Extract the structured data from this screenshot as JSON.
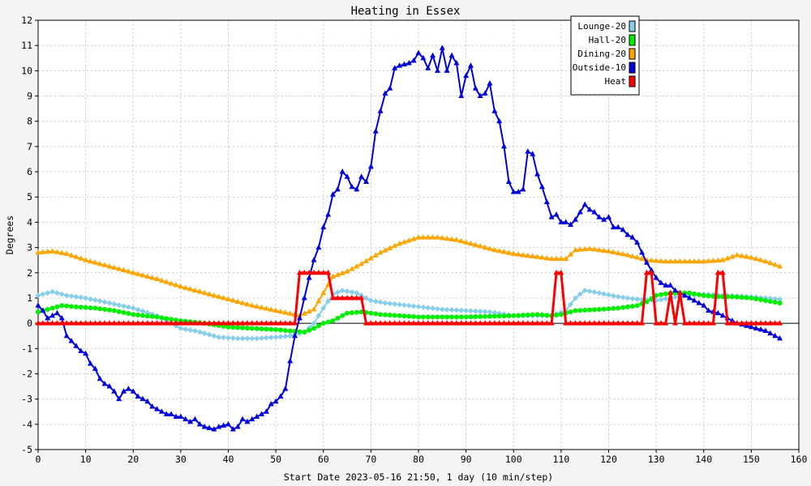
{
  "chart_data": {
    "type": "line",
    "title": "Heating in Essex",
    "xlabel": "Start Date 2023-05-16 21:50, 1 day (10 min/step)",
    "ylabel": "Degrees",
    "xlim": [
      0,
      160
    ],
    "ylim": [
      -5,
      12
    ],
    "xticks": [
      0,
      10,
      20,
      30,
      40,
      50,
      60,
      70,
      80,
      90,
      100,
      110,
      120,
      130,
      140,
      150,
      160
    ],
    "yticks": [
      -5,
      -4,
      -3,
      -2,
      -1,
      0,
      1,
      2,
      3,
      4,
      5,
      6,
      7,
      8,
      9,
      10,
      11,
      12
    ],
    "grid": true,
    "legend_position": "top-right",
    "series": [
      {
        "name": "Lounge-20",
        "color": "#87ceeb",
        "marker": "diamond",
        "points": [
          [
            0,
            1.1
          ],
          [
            3,
            1.25
          ],
          [
            6,
            1.1
          ],
          [
            10,
            1.0
          ],
          [
            15,
            0.8
          ],
          [
            20,
            0.6
          ],
          [
            25,
            0.3
          ],
          [
            28,
            0.0
          ],
          [
            30,
            -0.2
          ],
          [
            33,
            -0.3
          ],
          [
            38,
            -0.55
          ],
          [
            42,
            -0.6
          ],
          [
            46,
            -0.6
          ],
          [
            50,
            -0.55
          ],
          [
            53,
            -0.5
          ],
          [
            56,
            -0.35
          ],
          [
            58,
            0.0
          ],
          [
            60,
            0.6
          ],
          [
            62,
            1.15
          ],
          [
            64,
            1.3
          ],
          [
            67,
            1.2
          ],
          [
            70,
            0.9
          ],
          [
            73,
            0.8
          ],
          [
            78,
            0.7
          ],
          [
            85,
            0.55
          ],
          [
            90,
            0.5
          ],
          [
            95,
            0.45
          ],
          [
            100,
            0.3
          ],
          [
            105,
            0.3
          ],
          [
            108,
            0.3
          ],
          [
            111,
            0.5
          ],
          [
            113,
            1.0
          ],
          [
            115,
            1.3
          ],
          [
            118,
            1.2
          ],
          [
            122,
            1.05
          ],
          [
            126,
            0.95
          ],
          [
            130,
            0.9
          ],
          [
            133,
            1.0
          ],
          [
            136,
            1.1
          ],
          [
            140,
            1.15
          ],
          [
            145,
            1.1
          ],
          [
            150,
            1.05
          ],
          [
            153,
            1.0
          ],
          [
            156,
            0.95
          ]
        ]
      },
      {
        "name": "Hall-20",
        "color": "#00ee00",
        "marker": "circle",
        "points": [
          [
            0,
            0.45
          ],
          [
            3,
            0.6
          ],
          [
            5,
            0.7
          ],
          [
            8,
            0.65
          ],
          [
            12,
            0.6
          ],
          [
            16,
            0.5
          ],
          [
            20,
            0.35
          ],
          [
            25,
            0.25
          ],
          [
            30,
            0.1
          ],
          [
            35,
            0.0
          ],
          [
            40,
            -0.15
          ],
          [
            45,
            -0.2
          ],
          [
            50,
            -0.25
          ],
          [
            53,
            -0.3
          ],
          [
            56,
            -0.35
          ],
          [
            58,
            -0.2
          ],
          [
            60,
            0.0
          ],
          [
            62,
            0.1
          ],
          [
            65,
            0.4
          ],
          [
            68,
            0.45
          ],
          [
            72,
            0.35
          ],
          [
            76,
            0.3
          ],
          [
            80,
            0.25
          ],
          [
            90,
            0.25
          ],
          [
            100,
            0.3
          ],
          [
            105,
            0.35
          ],
          [
            108,
            0.3
          ],
          [
            110,
            0.35
          ],
          [
            113,
            0.5
          ],
          [
            118,
            0.55
          ],
          [
            122,
            0.6
          ],
          [
            126,
            0.7
          ],
          [
            128,
            0.85
          ],
          [
            130,
            1.1
          ],
          [
            133,
            1.2
          ],
          [
            137,
            1.2
          ],
          [
            140,
            1.1
          ],
          [
            143,
            1.05
          ],
          [
            146,
            1.05
          ],
          [
            150,
            1.0
          ],
          [
            153,
            0.9
          ],
          [
            156,
            0.8
          ]
        ]
      },
      {
        "name": "Dining-20",
        "color": "#ffa500",
        "marker": "triangle",
        "points": [
          [
            0,
            2.8
          ],
          [
            3,
            2.85
          ],
          [
            6,
            2.75
          ],
          [
            10,
            2.5
          ],
          [
            15,
            2.25
          ],
          [
            20,
            2.0
          ],
          [
            25,
            1.75
          ],
          [
            30,
            1.45
          ],
          [
            35,
            1.2
          ],
          [
            40,
            0.95
          ],
          [
            45,
            0.7
          ],
          [
            50,
            0.5
          ],
          [
            55,
            0.3
          ],
          [
            58,
            0.55
          ],
          [
            60,
            1.2
          ],
          [
            62,
            1.85
          ],
          [
            65,
            2.05
          ],
          [
            68,
            2.35
          ],
          [
            72,
            2.8
          ],
          [
            76,
            3.15
          ],
          [
            80,
            3.4
          ],
          [
            84,
            3.4
          ],
          [
            88,
            3.3
          ],
          [
            92,
            3.1
          ],
          [
            96,
            2.9
          ],
          [
            100,
            2.75
          ],
          [
            104,
            2.65
          ],
          [
            108,
            2.55
          ],
          [
            111,
            2.55
          ],
          [
            113,
            2.9
          ],
          [
            116,
            2.95
          ],
          [
            120,
            2.85
          ],
          [
            124,
            2.7
          ],
          [
            128,
            2.5
          ],
          [
            132,
            2.45
          ],
          [
            136,
            2.45
          ],
          [
            140,
            2.45
          ],
          [
            144,
            2.5
          ],
          [
            147,
            2.7
          ],
          [
            150,
            2.6
          ],
          [
            153,
            2.45
          ],
          [
            156,
            2.25
          ]
        ]
      },
      {
        "name": "Outside-10",
        "color": "#0000dd",
        "marker": "triangle",
        "points": [
          [
            0,
            0.7
          ],
          [
            1,
            0.5
          ],
          [
            2,
            0.2
          ],
          [
            3,
            0.3
          ],
          [
            4,
            0.4
          ],
          [
            5,
            0.2
          ],
          [
            6,
            -0.5
          ],
          [
            7,
            -0.7
          ],
          [
            8,
            -0.9
          ],
          [
            9,
            -1.1
          ],
          [
            10,
            -1.2
          ],
          [
            11,
            -1.6
          ],
          [
            12,
            -1.8
          ],
          [
            13,
            -2.2
          ],
          [
            14,
            -2.4
          ],
          [
            15,
            -2.5
          ],
          [
            16,
            -2.7
          ],
          [
            17,
            -3.0
          ],
          [
            18,
            -2.7
          ],
          [
            19,
            -2.6
          ],
          [
            20,
            -2.7
          ],
          [
            21,
            -2.9
          ],
          [
            22,
            -3.0
          ],
          [
            23,
            -3.1
          ],
          [
            24,
            -3.3
          ],
          [
            25,
            -3.4
          ],
          [
            26,
            -3.5
          ],
          [
            27,
            -3.6
          ],
          [
            28,
            -3.6
          ],
          [
            29,
            -3.7
          ],
          [
            30,
            -3.7
          ],
          [
            31,
            -3.8
          ],
          [
            32,
            -3.9
          ],
          [
            33,
            -3.8
          ],
          [
            34,
            -4.0
          ],
          [
            35,
            -4.1
          ],
          [
            36,
            -4.15
          ],
          [
            37,
            -4.2
          ],
          [
            38,
            -4.1
          ],
          [
            39,
            -4.05
          ],
          [
            40,
            -4.0
          ],
          [
            41,
            -4.2
          ],
          [
            42,
            -4.1
          ],
          [
            43,
            -3.8
          ],
          [
            44,
            -3.9
          ],
          [
            45,
            -3.8
          ],
          [
            46,
            -3.7
          ],
          [
            47,
            -3.6
          ],
          [
            48,
            -3.5
          ],
          [
            49,
            -3.2
          ],
          [
            50,
            -3.1
          ],
          [
            51,
            -2.9
          ],
          [
            52,
            -2.6
          ],
          [
            53,
            -1.5
          ],
          [
            54,
            -0.5
          ],
          [
            55,
            0.2
          ],
          [
            56,
            1.0
          ],
          [
            57,
            1.8
          ],
          [
            58,
            2.5
          ],
          [
            59,
            3.0
          ],
          [
            60,
            3.8
          ],
          [
            61,
            4.3
          ],
          [
            62,
            5.1
          ],
          [
            63,
            5.3
          ],
          [
            64,
            6.0
          ],
          [
            65,
            5.8
          ],
          [
            66,
            5.4
          ],
          [
            67,
            5.3
          ],
          [
            68,
            5.8
          ],
          [
            69,
            5.6
          ],
          [
            70,
            6.2
          ],
          [
            71,
            7.6
          ],
          [
            72,
            8.4
          ],
          [
            73,
            9.1
          ],
          [
            74,
            9.3
          ],
          [
            75,
            10.1
          ],
          [
            76,
            10.2
          ],
          [
            77,
            10.25
          ],
          [
            78,
            10.3
          ],
          [
            79,
            10.4
          ],
          [
            80,
            10.7
          ],
          [
            81,
            10.5
          ],
          [
            82,
            10.1
          ],
          [
            83,
            10.6
          ],
          [
            84,
            10.0
          ],
          [
            85,
            10.9
          ],
          [
            86,
            10.0
          ],
          [
            87,
            10.6
          ],
          [
            88,
            10.3
          ],
          [
            89,
            9.0
          ],
          [
            90,
            9.8
          ],
          [
            91,
            10.2
          ],
          [
            92,
            9.3
          ],
          [
            93,
            9.0
          ],
          [
            94,
            9.1
          ],
          [
            95,
            9.5
          ],
          [
            96,
            8.4
          ],
          [
            97,
            8.0
          ],
          [
            98,
            7.0
          ],
          [
            99,
            5.6
          ],
          [
            100,
            5.2
          ],
          [
            101,
            5.2
          ],
          [
            102,
            5.3
          ],
          [
            103,
            6.8
          ],
          [
            104,
            6.7
          ],
          [
            105,
            5.9
          ],
          [
            106,
            5.4
          ],
          [
            107,
            4.8
          ],
          [
            108,
            4.2
          ],
          [
            109,
            4.3
          ],
          [
            110,
            4.0
          ],
          [
            111,
            4.0
          ],
          [
            112,
            3.9
          ],
          [
            113,
            4.1
          ],
          [
            114,
            4.4
          ],
          [
            115,
            4.7
          ],
          [
            116,
            4.5
          ],
          [
            117,
            4.4
          ],
          [
            118,
            4.2
          ],
          [
            119,
            4.1
          ],
          [
            120,
            4.2
          ],
          [
            121,
            3.8
          ],
          [
            122,
            3.8
          ],
          [
            123,
            3.7
          ],
          [
            124,
            3.5
          ],
          [
            125,
            3.4
          ],
          [
            126,
            3.2
          ],
          [
            127,
            2.8
          ],
          [
            128,
            2.4
          ],
          [
            129,
            2.1
          ],
          [
            130,
            1.8
          ],
          [
            131,
            1.6
          ],
          [
            132,
            1.5
          ],
          [
            133,
            1.5
          ],
          [
            134,
            1.3
          ],
          [
            135,
            1.2
          ],
          [
            136,
            1.1
          ],
          [
            137,
            1.0
          ],
          [
            138,
            0.9
          ],
          [
            139,
            0.8
          ],
          [
            140,
            0.7
          ],
          [
            141,
            0.5
          ],
          [
            142,
            0.45
          ],
          [
            143,
            0.4
          ],
          [
            144,
            0.3
          ],
          [
            145,
            0.2
          ],
          [
            146,
            0.1
          ],
          [
            147,
            0.0
          ],
          [
            148,
            -0.05
          ],
          [
            149,
            -0.1
          ],
          [
            150,
            -0.15
          ],
          [
            151,
            -0.2
          ],
          [
            152,
            -0.25
          ],
          [
            153,
            -0.3
          ],
          [
            154,
            -0.4
          ],
          [
            155,
            -0.5
          ],
          [
            156,
            -0.6
          ]
        ]
      },
      {
        "name": "Heat",
        "color": "#ff0000",
        "marker": "triangle",
        "points": [
          [
            0,
            0
          ],
          [
            54,
            0
          ],
          [
            55,
            2
          ],
          [
            61,
            2
          ],
          [
            62,
            1
          ],
          [
            68,
            1
          ],
          [
            69,
            0
          ],
          [
            108,
            0
          ],
          [
            109,
            2
          ],
          [
            110,
            2
          ],
          [
            111,
            0
          ],
          [
            127,
            0
          ],
          [
            128,
            2
          ],
          [
            129,
            2
          ],
          [
            130,
            0
          ],
          [
            132,
            0
          ],
          [
            133,
            1.2
          ],
          [
            134,
            0
          ],
          [
            135,
            1.2
          ],
          [
            136,
            0
          ],
          [
            142,
            0
          ],
          [
            143,
            2
          ],
          [
            144,
            2
          ],
          [
            145,
            0
          ],
          [
            156,
            0
          ]
        ]
      }
    ]
  }
}
